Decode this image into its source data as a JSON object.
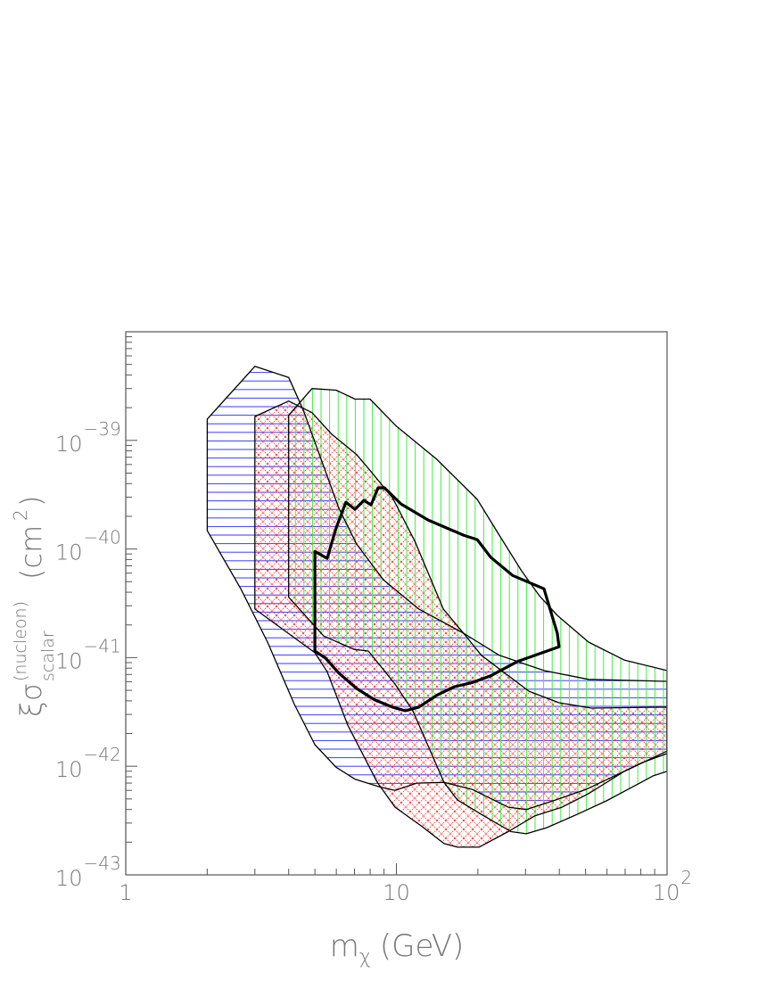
{
  "chart_data": {
    "type": "area",
    "title": "",
    "xlabel": {
      "main": "m",
      "sub": "χ",
      "unit": "(GeV)"
    },
    "ylabel": {
      "main": "ξσ",
      "sup": "(nucleon)",
      "sub": "scalar",
      "unit_open": "(cm",
      "unit_sup": "2",
      "unit_close": ")"
    },
    "xscale": "log",
    "yscale": "log",
    "xlim": [
      1,
      100
    ],
    "ylim": [
      1e-43,
      1e-38
    ],
    "grid": false,
    "xticks": [
      {
        "value": 1,
        "base": "1",
        "exp": ""
      },
      {
        "value": 10,
        "base": "10",
        "exp": ""
      },
      {
        "value": 100,
        "base": "10",
        "exp": "2"
      }
    ],
    "yticks": [
      {
        "value": 1e-43,
        "base": "10",
        "exp": "−43"
      },
      {
        "value": 1e-42,
        "base": "10",
        "exp": "−42"
      },
      {
        "value": 1e-41,
        "base": "10",
        "exp": "−41"
      },
      {
        "value": 1e-40,
        "base": "10",
        "exp": "−40"
      },
      {
        "value": 1e-39,
        "base": "10",
        "exp": "−39"
      }
    ],
    "colors": {
      "blue": "#3a3aff",
      "red": "#ff3030",
      "green": "#40ee40",
      "outline": "#000000",
      "axis": "#555555"
    },
    "regions": [
      {
        "hatch": "horizontal",
        "color": "#3a3aff",
        "points": [
          [
            2.0,
            1.57e-39
          ],
          [
            3.0,
            4.8e-39
          ],
          [
            4.0,
            3.8e-39
          ],
          [
            4.53,
            1.9e-39
          ],
          [
            5.27,
            6.7e-40
          ],
          [
            6.13,
            2.37e-40
          ],
          [
            7.13,
            1.11e-40
          ],
          [
            8.96,
            5.2e-41
          ],
          [
            12.1,
            2.8e-41
          ],
          [
            17.7,
            1.68e-41
          ],
          [
            24.0,
            1.05e-41
          ],
          [
            35.1,
            7.6e-42
          ],
          [
            51.3,
            6.3e-42
          ],
          [
            100,
            6.05e-42
          ],
          [
            100,
            1.31e-42
          ],
          [
            80.9,
            1.08e-42
          ],
          [
            64.4,
            8.2e-43
          ],
          [
            50.1,
            6.1e-43
          ],
          [
            37.9,
            4.8e-43
          ],
          [
            30.2,
            4e-43
          ],
          [
            25.9,
            4.2e-43
          ],
          [
            19.1,
            6.1e-43
          ],
          [
            15.0,
            7.1e-43
          ],
          [
            11.9,
            7e-43
          ],
          [
            9.89,
            6e-43
          ],
          [
            8.76,
            6.4e-43
          ],
          [
            7.03,
            7.6e-43
          ],
          [
            5.99,
            9.8e-43
          ],
          [
            5.0,
            1.58e-42
          ],
          [
            4.2,
            3.7e-42
          ],
          [
            3.34,
            1.39e-41
          ],
          [
            2.66,
            4.3e-41
          ],
          [
            2.0,
            1.48e-40
          ]
        ]
      },
      {
        "hatch": "cross",
        "color": "#ff3030",
        "points": [
          [
            3.0,
            1.66e-39
          ],
          [
            4.0,
            2.3e-39
          ],
          [
            4.88,
            1.8e-39
          ],
          [
            5.77,
            1.14e-39
          ],
          [
            7.13,
            7.4e-40
          ],
          [
            7.99,
            5.3e-40
          ],
          [
            9.67,
            2.97e-40
          ],
          [
            11.7,
            1.18e-40
          ],
          [
            14.9,
            2.8e-41
          ],
          [
            17.7,
            1.68e-41
          ],
          [
            20.6,
            1.05e-41
          ],
          [
            30.9,
            4.9e-42
          ],
          [
            39.9,
            3.84e-42
          ],
          [
            52.5,
            3.43e-42
          ],
          [
            100,
            3.5e-42
          ],
          [
            100,
            1.38e-42
          ],
          [
            69.5,
            8.96e-43
          ],
          [
            51.3,
            5.6e-43
          ],
          [
            40.9,
            4.2e-43
          ],
          [
            32.5,
            3.5e-43
          ],
          [
            25.9,
            2.5e-43
          ],
          [
            20.2,
            1.8e-43
          ],
          [
            16.8,
            1.8e-43
          ],
          [
            15.0,
            1.94e-43
          ],
          [
            12.4,
            2.8e-43
          ],
          [
            9.89,
            4.2e-43
          ],
          [
            8.5,
            7.1e-43
          ],
          [
            6.61,
            2.4e-42
          ],
          [
            5.55,
            7.4e-42
          ],
          [
            5.0,
            1.11e-41
          ],
          [
            3.0,
            2.8e-41
          ]
        ]
      },
      {
        "hatch": "vertical",
        "color": "#40ee40",
        "points": [
          [
            4.0,
            1.7e-39
          ],
          [
            4.88,
            3e-39
          ],
          [
            5.99,
            2.9e-39
          ],
          [
            7.03,
            2.4e-39
          ],
          [
            7.99,
            2.4e-39
          ],
          [
            10.0,
            1.35e-39
          ],
          [
            14.1,
            6.7e-40
          ],
          [
            19.9,
            2.86e-40
          ],
          [
            24.0,
            1.34e-40
          ],
          [
            29.0,
            6.3e-41
          ],
          [
            33.8,
            3.7e-41
          ],
          [
            39.3,
            2.45e-41
          ],
          [
            51.3,
            1.39e-41
          ],
          [
            69.5,
            9.5e-42
          ],
          [
            100,
            7.6e-42
          ],
          [
            100,
            8.96e-43
          ],
          [
            89.2,
            8.2e-43
          ],
          [
            76.7,
            6.7e-43
          ],
          [
            59.7,
            4.8e-43
          ],
          [
            46.5,
            3.6e-43
          ],
          [
            35.9,
            2.72e-43
          ],
          [
            30.2,
            2.39e-43
          ],
          [
            26.5,
            2.5e-43
          ],
          [
            20.6,
            3.6e-43
          ],
          [
            16.8,
            4.9e-43
          ],
          [
            15.0,
            7.1e-43
          ],
          [
            11.5,
            3.24e-42
          ],
          [
            9.89,
            5.7e-42
          ],
          [
            7.88,
            1.15e-41
          ],
          [
            6.98,
            1.19e-41
          ],
          [
            5.39,
            1.58e-41
          ],
          [
            4.0,
            3.6e-41
          ]
        ]
      }
    ],
    "contour": {
      "color": "#000000",
      "points": [
        [
          5.0,
          9.5e-41
        ],
        [
          5.55,
          8.2e-41
        ],
        [
          5.99,
          1.56e-40
        ],
        [
          6.51,
          2.7e-40
        ],
        [
          7.03,
          2.32e-40
        ],
        [
          7.58,
          2.8e-40
        ],
        [
          8.06,
          2.55e-40
        ],
        [
          8.56,
          3.66e-40
        ],
        [
          9.03,
          3.66e-40
        ],
        [
          10.4,
          2.6e-40
        ],
        [
          13.1,
          1.85e-40
        ],
        [
          17.7,
          1.34e-40
        ],
        [
          19.9,
          1.22e-40
        ],
        [
          22.3,
          8.4e-41
        ],
        [
          26.9,
          5.7e-41
        ],
        [
          35.1,
          4.3e-41
        ],
        [
          39.3,
          1.68e-41
        ],
        [
          39.9,
          1.26e-41
        ],
        [
          28.0,
          9.2e-42
        ],
        [
          22.3,
          6.8e-42
        ],
        [
          19.1,
          5.9e-42
        ],
        [
          16.4,
          5.4e-42
        ],
        [
          14.1,
          4.5e-42
        ],
        [
          12.1,
          3.5e-42
        ],
        [
          10.8,
          3.24e-42
        ],
        [
          9.67,
          3.5e-42
        ],
        [
          8.3,
          4.1e-42
        ],
        [
          7.13,
          5.2e-42
        ],
        [
          6.13,
          7.2e-42
        ],
        [
          5.47,
          9.9e-42
        ],
        [
          5.0,
          1.15e-41
        ]
      ]
    }
  }
}
